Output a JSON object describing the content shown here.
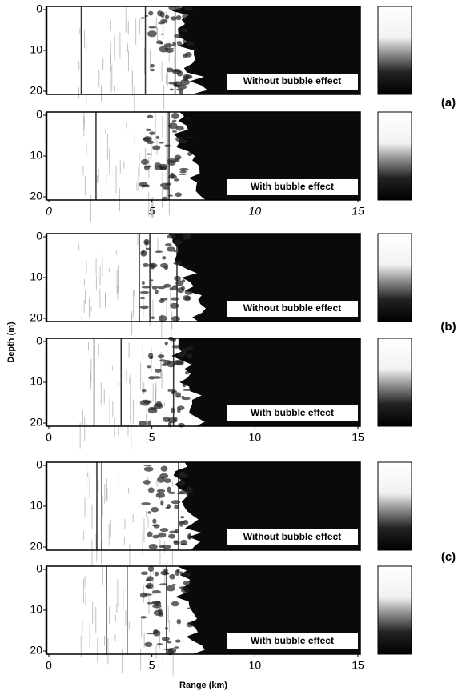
{
  "chart_data": [
    {
      "type": "heatmap",
      "annotation": "Without bubble effect",
      "xlim": [
        0,
        15
      ],
      "ylim": [
        0,
        20
      ],
      "yticks": [
        0,
        10,
        20
      ]
    },
    {
      "type": "heatmap",
      "annotation": "With bubble effect",
      "xlim": [
        0,
        15
      ],
      "ylim": [
        0,
        20
      ],
      "yticks": [
        0,
        10,
        20
      ],
      "xticks": [
        0,
        5,
        10,
        15
      ]
    },
    {
      "type": "heatmap",
      "annotation": "Without bubble effect",
      "xlim": [
        0,
        15
      ],
      "ylim": [
        0,
        20
      ],
      "yticks": [
        0,
        10,
        20
      ]
    },
    {
      "type": "heatmap",
      "annotation": "With bubble effect",
      "xlim": [
        0,
        15
      ],
      "ylim": [
        0,
        20
      ],
      "yticks": [
        0,
        10,
        20
      ],
      "xticks": [
        0,
        5,
        10,
        15
      ]
    },
    {
      "type": "heatmap",
      "annotation": "Without bubble effect",
      "xlim": [
        0,
        15
      ],
      "ylim": [
        0,
        20
      ],
      "yticks": [
        0,
        10,
        20
      ]
    },
    {
      "type": "heatmap",
      "annotation": "With bubble effect",
      "xlim": [
        0,
        15
      ],
      "ylim": [
        0,
        20
      ],
      "yticks": [
        0,
        10,
        20
      ],
      "xticks": [
        0,
        5,
        10,
        15
      ]
    }
  ],
  "group_labels": [
    "(a)",
    "(b)",
    "(c)"
  ],
  "ylabel": "Depth (m)",
  "xlabel": "Range (km)"
}
